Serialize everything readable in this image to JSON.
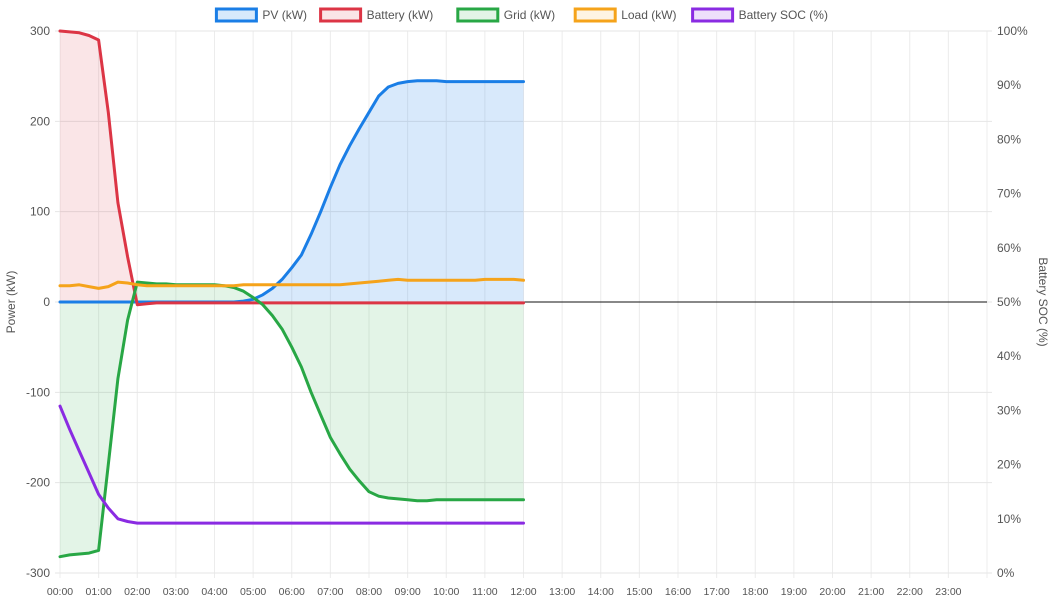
{
  "chart_data": {
    "type": "line",
    "legend_position": "top-center",
    "grid": true,
    "xlabel": "",
    "ylabel": "Power (kW)",
    "y2label": "Battery SOC (%)",
    "ylim": [
      -300,
      300
    ],
    "y2lim": [
      0,
      100
    ],
    "y_ticks": [
      "300",
      "200",
      "100",
      "0",
      "-100",
      "-200",
      "-300"
    ],
    "y_tick_values": [
      300,
      200,
      100,
      0,
      -100,
      -200,
      -300
    ],
    "y2_ticks": [
      "100%",
      "90%",
      "80%",
      "70%",
      "60%",
      "50%",
      "40%",
      "30%",
      "20%",
      "10%",
      "0%"
    ],
    "y2_tick_values": [
      100,
      90,
      80,
      70,
      60,
      50,
      40,
      30,
      20,
      10,
      0
    ],
    "x_ticks": [
      "00:00",
      "01:00",
      "02:00",
      "03:00",
      "04:00",
      "05:00",
      "06:00",
      "07:00",
      "08:00",
      "09:00",
      "10:00",
      "11:00",
      "12:00",
      "13:00",
      "14:00",
      "15:00",
      "16:00",
      "17:00",
      "18:00",
      "19:00",
      "20:00",
      "21:00",
      "22:00",
      "23:00"
    ],
    "x_hours": [
      0,
      0.25,
      0.5,
      0.75,
      1,
      1.25,
      1.5,
      1.75,
      2,
      2.25,
      2.5,
      2.75,
      3,
      3.25,
      3.5,
      3.75,
      4,
      4.25,
      4.5,
      4.75,
      5,
      5.25,
      5.5,
      5.75,
      6,
      6.25,
      6.5,
      6.75,
      7,
      7.25,
      7.5,
      7.75,
      8,
      8.25,
      8.5,
      8.75,
      9,
      9.25,
      9.5,
      9.75,
      10,
      10.25,
      10.5,
      10.75,
      11,
      11.25,
      11.5,
      11.75,
      12
    ],
    "series": [
      {
        "name": "PV (kW)",
        "axis": "left",
        "color": "#1a7ee6",
        "fill": "rgba(26,126,230,0.17)",
        "values": [
          0,
          0,
          0,
          0,
          0,
          0,
          0,
          0,
          0,
          0,
          0,
          0,
          0,
          0,
          0,
          0,
          0,
          0,
          0,
          1,
          3,
          8,
          15,
          25,
          38,
          52,
          75,
          100,
          127,
          152,
          173,
          192,
          210,
          228,
          238,
          242,
          244,
          245,
          245,
          245,
          244,
          244,
          244,
          244,
          244,
          244,
          244,
          244,
          244
        ]
      },
      {
        "name": "Battery (kW)",
        "axis": "left",
        "color": "#dc3545",
        "fill": "rgba(220,53,69,0.13)",
        "values": [
          300,
          299,
          298,
          295,
          290,
          210,
          110,
          50,
          -3,
          -2,
          -1,
          -1,
          -1,
          -1,
          -1,
          -1,
          -1,
          -1,
          -1,
          -1,
          -1,
          -1,
          -1,
          -1,
          -1,
          -1,
          -1,
          -1,
          -1,
          -1,
          -1,
          -1,
          -1,
          -1,
          -1,
          -1,
          -1,
          -1,
          -1,
          -1,
          -1,
          -1,
          -1,
          -1,
          -1,
          -1,
          -1,
          -1,
          -1
        ]
      },
      {
        "name": "Grid (kW)",
        "axis": "left",
        "color": "#28a745",
        "fill": "rgba(40,167,69,0.13)",
        "values": [
          -282,
          -280,
          -279,
          -278,
          -275,
          -180,
          -85,
          -20,
          22,
          21,
          20,
          20,
          19,
          19,
          19,
          19,
          19,
          18,
          16,
          12,
          5,
          -3,
          -15,
          -30,
          -50,
          -72,
          -100,
          -125,
          -150,
          -168,
          -185,
          -198,
          -210,
          -215,
          -217,
          -218,
          -219,
          -220,
          -220,
          -219,
          -219,
          -219,
          -219,
          -219,
          -219,
          -219,
          -219,
          -219,
          -219
        ]
      },
      {
        "name": "Load (kW)",
        "axis": "left",
        "color": "#f5a31a",
        "fill": "none",
        "values": [
          18,
          18,
          19,
          17,
          15,
          17,
          22,
          21,
          19,
          18,
          18,
          18,
          18,
          18,
          18,
          18,
          18,
          18,
          18,
          19,
          19,
          19,
          19,
          19,
          19,
          19,
          19,
          19,
          19,
          19,
          20,
          21,
          22,
          23,
          24,
          25,
          24,
          24,
          24,
          24,
          24,
          24,
          24,
          24,
          25,
          25,
          25,
          25,
          24
        ]
      },
      {
        "name": "Battery SOC (%)",
        "axis": "right",
        "color": "#8a2be2",
        "fill": "none",
        "values": [
          30.8,
          26.5,
          22.5,
          18.5,
          14.5,
          12,
          10,
          9.5,
          9.2,
          9.2,
          9.2,
          9.2,
          9.2,
          9.2,
          9.2,
          9.2,
          9.2,
          9.2,
          9.2,
          9.2,
          9.2,
          9.2,
          9.2,
          9.2,
          9.2,
          9.2,
          9.2,
          9.2,
          9.2,
          9.2,
          9.2,
          9.2,
          9.2,
          9.2,
          9.2,
          9.2,
          9.2,
          9.2,
          9.2,
          9.2,
          9.2,
          9.2,
          9.2,
          9.2,
          9.2,
          9.2,
          9.2,
          9.2,
          9.2
        ]
      }
    ]
  }
}
